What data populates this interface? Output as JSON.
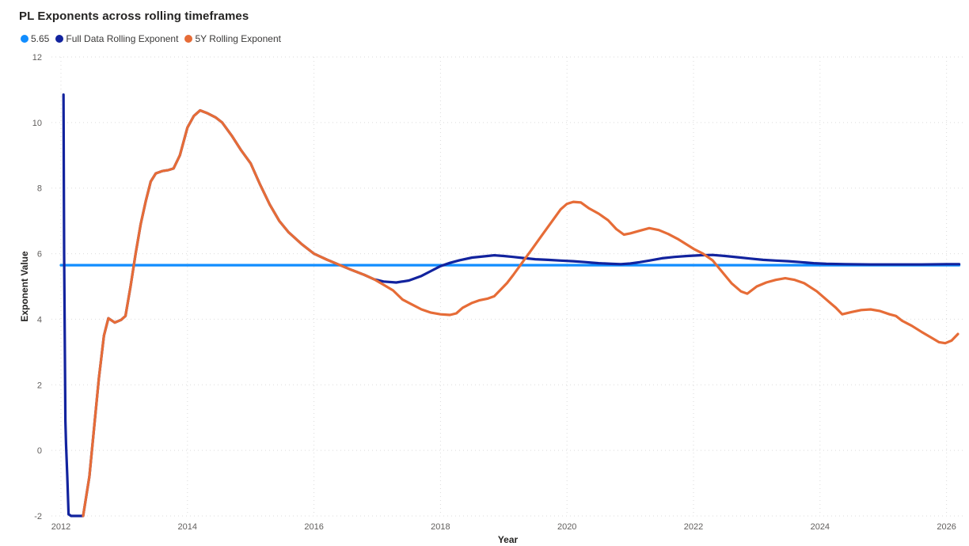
{
  "title": "PL Exponents across rolling timeframes",
  "colors": {
    "background": "#FFFFFF",
    "title_text": "#252423",
    "legend_text": "#3B3A39",
    "tick_label": "#605E5C",
    "axis_title": "#252423",
    "gridline": "#DBDBDB",
    "ref_line": "#118DFF",
    "full_data_line": "#12239E",
    "rolling_5y_line": "#E66C37"
  },
  "chart_data": {
    "type": "line",
    "title": "PL Exponents across rolling timeframes",
    "xlabel": "Year",
    "ylabel": "Exponent Value",
    "xlim": [
      2011.85,
      2026.28
    ],
    "ylim": [
      -2,
      12
    ],
    "x_ticks": [
      2012,
      2014,
      2016,
      2018,
      2020,
      2022,
      2024,
      2026
    ],
    "y_ticks": [
      -2,
      0,
      2,
      4,
      6,
      8,
      10,
      12
    ],
    "grid": "dotted",
    "legend_position": "top-left",
    "series": [
      {
        "name": "5.65",
        "color": "#118DFF",
        "value": 5.65,
        "points": [
          [
            2012.0,
            5.65
          ],
          [
            2026.2,
            5.65
          ]
        ]
      },
      {
        "name": "Full Data Rolling Exponent",
        "color": "#12239E",
        "points": [
          [
            2012.04,
            10.85
          ],
          [
            2012.05,
            6.0
          ],
          [
            2012.07,
            0.9
          ],
          [
            2012.08,
            0.2
          ],
          [
            2012.1,
            -0.8
          ],
          [
            2012.12,
            -1.95
          ],
          [
            2012.16,
            -2.0
          ],
          [
            2012.35,
            -2.0
          ],
          [
            2012.45,
            -0.8
          ],
          [
            2012.52,
            0.6
          ],
          [
            2012.6,
            2.2
          ],
          [
            2012.68,
            3.5
          ],
          [
            2012.75,
            4.03
          ],
          [
            2012.85,
            3.9
          ],
          [
            2012.95,
            3.98
          ],
          [
            2013.02,
            4.1
          ],
          [
            2013.1,
            5.0
          ],
          [
            2013.18,
            6.0
          ],
          [
            2013.26,
            6.9
          ],
          [
            2013.34,
            7.6
          ],
          [
            2013.42,
            8.2
          ],
          [
            2013.5,
            8.45
          ],
          [
            2013.6,
            8.52
          ],
          [
            2013.7,
            8.55
          ],
          [
            2013.78,
            8.6
          ],
          [
            2013.88,
            9.0
          ],
          [
            2014.0,
            9.85
          ],
          [
            2014.1,
            10.2
          ],
          [
            2014.2,
            10.37
          ],
          [
            2014.32,
            10.28
          ],
          [
            2014.45,
            10.15
          ],
          [
            2014.55,
            10.0
          ],
          [
            2014.7,
            9.6
          ],
          [
            2014.85,
            9.15
          ],
          [
            2015.0,
            8.75
          ],
          [
            2015.15,
            8.1
          ],
          [
            2015.3,
            7.5
          ],
          [
            2015.45,
            7.0
          ],
          [
            2015.6,
            6.65
          ],
          [
            2015.8,
            6.3
          ],
          [
            2016.0,
            6.0
          ],
          [
            2016.2,
            5.82
          ],
          [
            2016.4,
            5.66
          ],
          [
            2016.6,
            5.5
          ],
          [
            2016.8,
            5.35
          ],
          [
            2016.95,
            5.22
          ],
          [
            2017.1,
            5.15
          ],
          [
            2017.3,
            5.12
          ],
          [
            2017.5,
            5.18
          ],
          [
            2017.7,
            5.32
          ],
          [
            2017.85,
            5.47
          ],
          [
            2018.0,
            5.62
          ],
          [
            2018.15,
            5.72
          ],
          [
            2018.3,
            5.8
          ],
          [
            2018.5,
            5.88
          ],
          [
            2018.7,
            5.92
          ],
          [
            2018.85,
            5.95
          ],
          [
            2019.0,
            5.93
          ],
          [
            2019.15,
            5.9
          ],
          [
            2019.3,
            5.87
          ],
          [
            2019.5,
            5.83
          ],
          [
            2019.7,
            5.81
          ],
          [
            2019.9,
            5.79
          ],
          [
            2020.1,
            5.77
          ],
          [
            2020.3,
            5.74
          ],
          [
            2020.5,
            5.71
          ],
          [
            2020.7,
            5.69
          ],
          [
            2020.85,
            5.68
          ],
          [
            2021.0,
            5.7
          ],
          [
            2021.15,
            5.74
          ],
          [
            2021.3,
            5.79
          ],
          [
            2021.5,
            5.86
          ],
          [
            2021.7,
            5.9
          ],
          [
            2021.9,
            5.93
          ],
          [
            2022.1,
            5.95
          ],
          [
            2022.3,
            5.96
          ],
          [
            2022.5,
            5.93
          ],
          [
            2022.7,
            5.89
          ],
          [
            2022.9,
            5.85
          ],
          [
            2023.1,
            5.81
          ],
          [
            2023.3,
            5.79
          ],
          [
            2023.5,
            5.77
          ],
          [
            2023.7,
            5.74
          ],
          [
            2023.9,
            5.71
          ],
          [
            2024.1,
            5.69
          ],
          [
            2024.4,
            5.68
          ],
          [
            2024.8,
            5.67
          ],
          [
            2025.2,
            5.67
          ],
          [
            2025.6,
            5.67
          ],
          [
            2026.0,
            5.68
          ],
          [
            2026.2,
            5.68
          ]
        ]
      },
      {
        "name": "5Y Rolling Exponent",
        "color": "#E66C37",
        "points": [
          [
            2012.35,
            -2.0
          ],
          [
            2012.45,
            -0.8
          ],
          [
            2012.52,
            0.6
          ],
          [
            2012.6,
            2.2
          ],
          [
            2012.68,
            3.5
          ],
          [
            2012.75,
            4.03
          ],
          [
            2012.85,
            3.9
          ],
          [
            2012.95,
            3.98
          ],
          [
            2013.02,
            4.1
          ],
          [
            2013.1,
            5.0
          ],
          [
            2013.18,
            6.0
          ],
          [
            2013.26,
            6.9
          ],
          [
            2013.34,
            7.6
          ],
          [
            2013.42,
            8.2
          ],
          [
            2013.5,
            8.45
          ],
          [
            2013.6,
            8.52
          ],
          [
            2013.7,
            8.55
          ],
          [
            2013.78,
            8.6
          ],
          [
            2013.88,
            9.0
          ],
          [
            2014.0,
            9.85
          ],
          [
            2014.1,
            10.2
          ],
          [
            2014.2,
            10.37
          ],
          [
            2014.32,
            10.28
          ],
          [
            2014.45,
            10.15
          ],
          [
            2014.55,
            10.0
          ],
          [
            2014.7,
            9.6
          ],
          [
            2014.85,
            9.15
          ],
          [
            2015.0,
            8.75
          ],
          [
            2015.15,
            8.1
          ],
          [
            2015.3,
            7.5
          ],
          [
            2015.45,
            7.0
          ],
          [
            2015.6,
            6.65
          ],
          [
            2015.8,
            6.3
          ],
          [
            2016.0,
            6.0
          ],
          [
            2016.2,
            5.82
          ],
          [
            2016.4,
            5.66
          ],
          [
            2016.6,
            5.5
          ],
          [
            2016.8,
            5.35
          ],
          [
            2016.95,
            5.22
          ],
          [
            2017.1,
            5.05
          ],
          [
            2017.25,
            4.88
          ],
          [
            2017.4,
            4.6
          ],
          [
            2017.55,
            4.45
          ],
          [
            2017.7,
            4.3
          ],
          [
            2017.85,
            4.2
          ],
          [
            2018.0,
            4.15
          ],
          [
            2018.15,
            4.13
          ],
          [
            2018.25,
            4.18
          ],
          [
            2018.35,
            4.35
          ],
          [
            2018.5,
            4.5
          ],
          [
            2018.62,
            4.58
          ],
          [
            2018.75,
            4.63
          ],
          [
            2018.85,
            4.7
          ],
          [
            2018.95,
            4.9
          ],
          [
            2019.05,
            5.1
          ],
          [
            2019.15,
            5.35
          ],
          [
            2019.3,
            5.75
          ],
          [
            2019.45,
            6.15
          ],
          [
            2019.6,
            6.55
          ],
          [
            2019.75,
            6.95
          ],
          [
            2019.9,
            7.35
          ],
          [
            2020.0,
            7.52
          ],
          [
            2020.1,
            7.58
          ],
          [
            2020.22,
            7.56
          ],
          [
            2020.35,
            7.38
          ],
          [
            2020.5,
            7.22
          ],
          [
            2020.65,
            7.02
          ],
          [
            2020.78,
            6.75
          ],
          [
            2020.9,
            6.58
          ],
          [
            2021.0,
            6.62
          ],
          [
            2021.15,
            6.7
          ],
          [
            2021.3,
            6.78
          ],
          [
            2021.45,
            6.72
          ],
          [
            2021.6,
            6.6
          ],
          [
            2021.75,
            6.45
          ],
          [
            2021.9,
            6.27
          ],
          [
            2022.0,
            6.15
          ],
          [
            2022.15,
            6.0
          ],
          [
            2022.3,
            5.8
          ],
          [
            2022.45,
            5.45
          ],
          [
            2022.6,
            5.1
          ],
          [
            2022.75,
            4.85
          ],
          [
            2022.85,
            4.78
          ],
          [
            2023.0,
            5.0
          ],
          [
            2023.15,
            5.12
          ],
          [
            2023.3,
            5.2
          ],
          [
            2023.45,
            5.25
          ],
          [
            2023.6,
            5.2
          ],
          [
            2023.75,
            5.1
          ],
          [
            2023.95,
            4.85
          ],
          [
            2024.1,
            4.6
          ],
          [
            2024.25,
            4.35
          ],
          [
            2024.35,
            4.15
          ],
          [
            2024.5,
            4.22
          ],
          [
            2024.65,
            4.28
          ],
          [
            2024.8,
            4.3
          ],
          [
            2024.95,
            4.25
          ],
          [
            2025.1,
            4.15
          ],
          [
            2025.2,
            4.1
          ],
          [
            2025.3,
            3.95
          ],
          [
            2025.45,
            3.8
          ],
          [
            2025.6,
            3.62
          ],
          [
            2025.75,
            3.45
          ],
          [
            2025.88,
            3.3
          ],
          [
            2025.98,
            3.27
          ],
          [
            2026.08,
            3.35
          ],
          [
            2026.18,
            3.55
          ]
        ]
      }
    ]
  }
}
